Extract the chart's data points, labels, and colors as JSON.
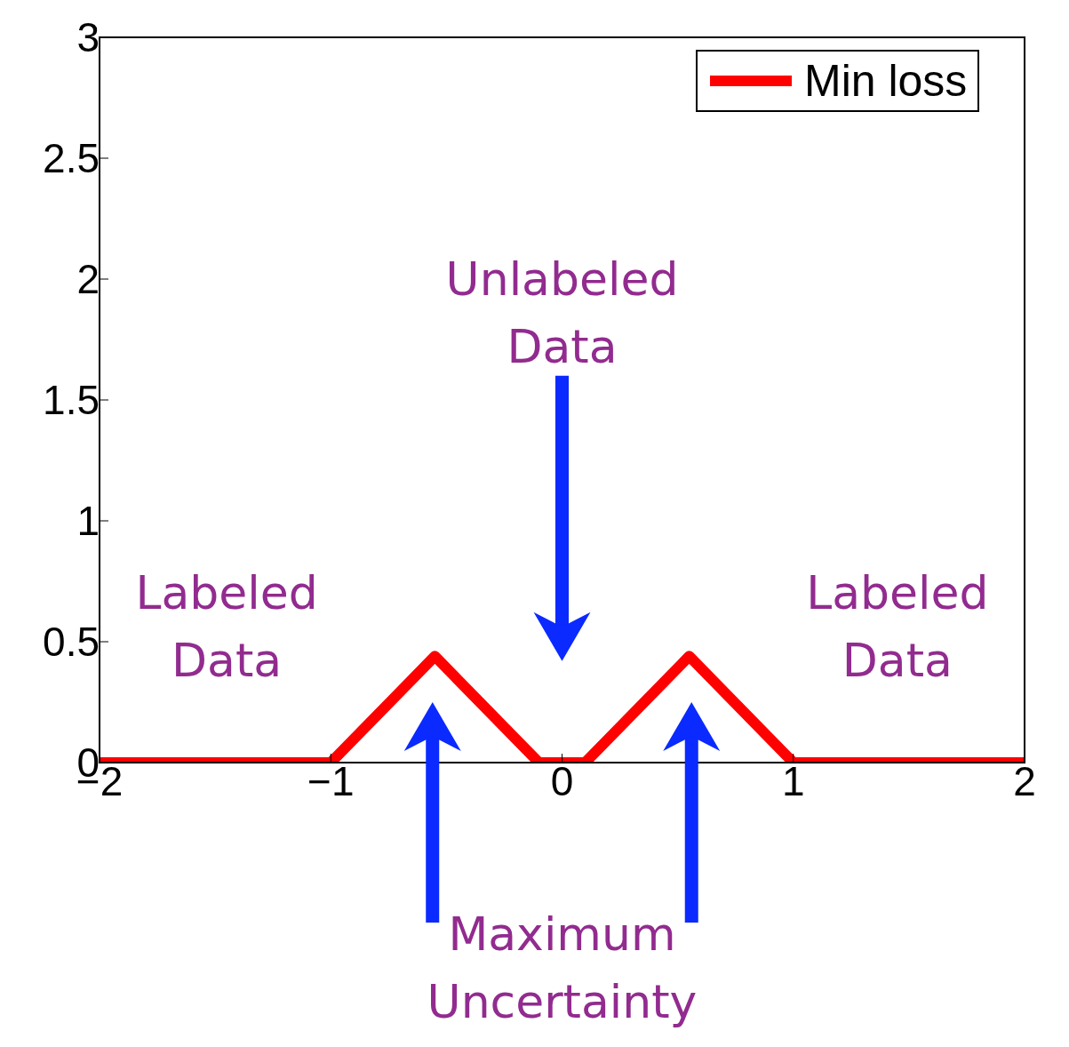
{
  "chart_data": {
    "type": "line",
    "x": [
      -2,
      -1,
      -0.55,
      -0.1,
      0.1,
      0.55,
      1,
      2
    ],
    "series": [
      {
        "name": "Min loss",
        "color": "#ff0000",
        "values": [
          0,
          0,
          0.44,
          0,
          0,
          0.44,
          0,
          0
        ]
      }
    ],
    "xlim": [
      -2,
      2
    ],
    "xticks": [
      {
        "value": -2,
        "label": "−2"
      },
      {
        "value": -1,
        "label": "−1"
      },
      0,
      1,
      2
    ],
    "ylim": [
      0,
      3
    ],
    "yticks": [
      0,
      0.5,
      1,
      1.5,
      2,
      2.5,
      3
    ],
    "annotations": [
      "Unlabeled Data",
      "Labeled Data",
      "Labeled Data",
      "Maximum Uncertainty"
    ],
    "legend": "top right",
    "grid": false,
    "marker": "none",
    "line_style": "solid"
  }
}
